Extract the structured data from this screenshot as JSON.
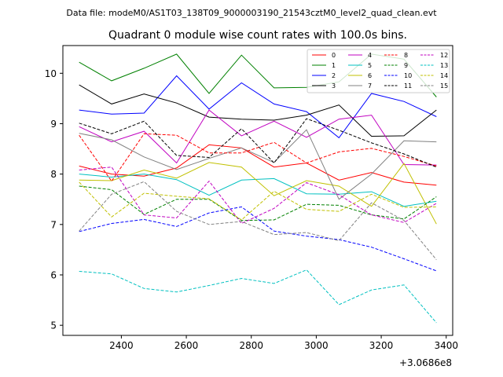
{
  "suptitle": "Data file: modeM0/AS1T03_138T09_9000003190_21543cztM0_level2_quad_clean.evt",
  "chart_data": {
    "type": "line",
    "title": "Quadrant 0 module wise count rates with 100.0s bins.",
    "xlabel": "",
    "ylabel": "",
    "x_offset_label": "+3.0686e8",
    "xlim": [
      2220,
      3420
    ],
    "ylim": [
      4.8,
      10.55
    ],
    "xticks": [
      2400,
      2600,
      2800,
      3000,
      3200,
      3400
    ],
    "yticks": [
      5,
      6,
      7,
      8,
      9,
      10
    ],
    "legend_position": "top-right",
    "x": [
      2270,
      2370,
      2470,
      2570,
      2670,
      2770,
      2870,
      2970,
      3070,
      3170,
      3270,
      3370
    ],
    "series": [
      {
        "name": "0",
        "color": "#ff0000",
        "dash": false,
        "values": [
          8.16,
          8.0,
          7.96,
          8.12,
          8.58,
          8.52,
          8.14,
          8.22,
          7.88,
          8.03,
          7.84,
          7.78
        ]
      },
      {
        "name": "1",
        "color": "#008000",
        "dash": false,
        "values": [
          10.22,
          9.85,
          10.1,
          10.38,
          9.6,
          10.36,
          9.71,
          9.72,
          9.83,
          10.38,
          10.28,
          9.53
        ]
      },
      {
        "name": "2",
        "color": "#0000ff",
        "dash": false,
        "values": [
          9.27,
          9.19,
          9.21,
          9.95,
          9.29,
          9.81,
          9.39,
          9.24,
          8.72,
          9.6,
          9.44,
          9.14
        ]
      },
      {
        "name": "3",
        "color": "#000000",
        "dash": false,
        "values": [
          9.77,
          9.39,
          9.59,
          9.41,
          9.13,
          9.09,
          9.07,
          9.17,
          9.37,
          8.75,
          8.76,
          9.27
        ]
      },
      {
        "name": "4",
        "color": "#c000c0",
        "dash": false,
        "values": [
          8.94,
          8.64,
          8.85,
          8.22,
          9.27,
          8.76,
          9.05,
          8.73,
          9.09,
          9.17,
          8.19,
          8.18
        ]
      },
      {
        "name": "5",
        "color": "#00c0c0",
        "dash": false,
        "values": [
          8.0,
          7.94,
          8.0,
          7.89,
          7.58,
          7.88,
          7.91,
          7.61,
          7.6,
          7.65,
          7.36,
          7.46
        ]
      },
      {
        "name": "6",
        "color": "#c0c000",
        "dash": false,
        "values": [
          7.88,
          7.87,
          8.08,
          7.92,
          8.23,
          8.14,
          7.57,
          7.87,
          7.76,
          7.36,
          8.21,
          7.01
        ]
      },
      {
        "name": "7",
        "color": "#808080",
        "dash": false,
        "values": [
          8.81,
          8.68,
          8.34,
          8.09,
          8.31,
          8.52,
          8.23,
          8.88,
          7.5,
          8.0,
          8.66,
          8.64
        ]
      },
      {
        "name": "8",
        "color": "#ff0000",
        "dash": true,
        "values": [
          8.77,
          7.86,
          8.8,
          8.77,
          8.42,
          8.42,
          8.63,
          8.22,
          8.44,
          8.51,
          8.35,
          8.16
        ]
      },
      {
        "name": "9",
        "color": "#008000",
        "dash": true,
        "values": [
          7.76,
          7.69,
          7.2,
          7.5,
          7.5,
          7.08,
          7.09,
          7.4,
          7.38,
          7.19,
          7.11,
          7.55
        ]
      },
      {
        "name": "10",
        "color": "#0000ff",
        "dash": true,
        "values": [
          6.86,
          7.02,
          7.1,
          6.96,
          7.23,
          7.35,
          6.87,
          6.77,
          6.7,
          6.55,
          6.32,
          6.08
        ]
      },
      {
        "name": "11",
        "color": "#000000",
        "dash": true,
        "values": [
          9.01,
          8.8,
          9.05,
          8.37,
          8.33,
          8.9,
          8.22,
          9.1,
          8.87,
          8.62,
          8.4,
          8.14
        ]
      },
      {
        "name": "12",
        "color": "#c000c0",
        "dash": true,
        "values": [
          8.08,
          8.14,
          7.19,
          7.13,
          7.86,
          7.02,
          7.32,
          7.83,
          7.59,
          7.19,
          7.04,
          7.42
        ]
      },
      {
        "name": "13",
        "color": "#00c0c0",
        "dash": true,
        "values": [
          6.07,
          6.02,
          5.73,
          5.66,
          5.79,
          5.93,
          5.83,
          6.1,
          5.41,
          5.7,
          5.8,
          5.05
        ]
      },
      {
        "name": "14",
        "color": "#c0c000",
        "dash": true,
        "values": [
          7.84,
          7.15,
          7.62,
          7.56,
          7.51,
          7.09,
          7.66,
          7.3,
          7.26,
          7.6,
          7.34,
          7.35
        ]
      },
      {
        "name": "15",
        "color": "#808080",
        "dash": true,
        "values": [
          6.87,
          7.6,
          7.85,
          7.26,
          7.0,
          7.06,
          6.8,
          6.84,
          6.68,
          7.43,
          7.08,
          6.3
        ]
      }
    ]
  }
}
